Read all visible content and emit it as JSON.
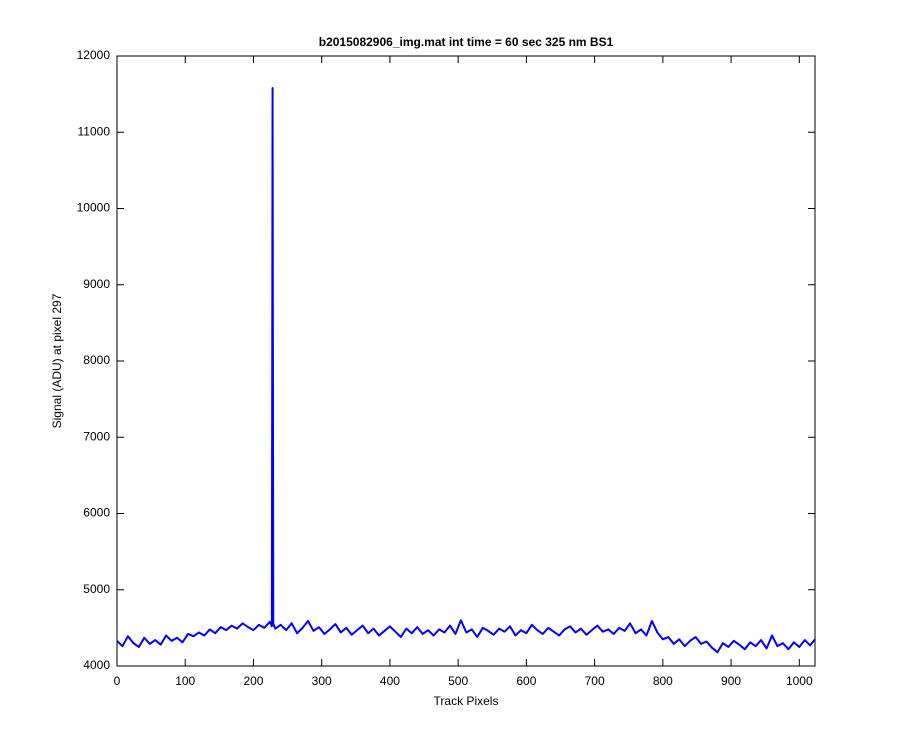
{
  "chart_data": {
    "type": "line",
    "title": "b2015082906_img.mat int time = 60 sec  325 nm BS1",
    "x_label": "Track Pixels",
    "y_label": "Signal (ADU) at pixel 297",
    "x": [
      0,
      8,
      16,
      24,
      32,
      40,
      48,
      56,
      64,
      72,
      80,
      88,
      96,
      104,
      112,
      120,
      128,
      136,
      144,
      152,
      160,
      168,
      176,
      184,
      192,
      200,
      208,
      216,
      224,
      227,
      228,
      229,
      232,
      240,
      248,
      256,
      264,
      272,
      280,
      288,
      296,
      304,
      312,
      320,
      328,
      336,
      344,
      352,
      360,
      368,
      376,
      384,
      392,
      400,
      408,
      416,
      424,
      432,
      440,
      448,
      456,
      464,
      472,
      480,
      488,
      496,
      504,
      512,
      520,
      528,
      536,
      544,
      552,
      560,
      568,
      576,
      584,
      592,
      600,
      608,
      616,
      624,
      632,
      640,
      648,
      656,
      664,
      672,
      680,
      688,
      696,
      704,
      712,
      720,
      728,
      736,
      744,
      752,
      760,
      768,
      776,
      784,
      792,
      800,
      808,
      816,
      824,
      832,
      840,
      848,
      856,
      864,
      872,
      880,
      888,
      896,
      904,
      912,
      920,
      928,
      936,
      944,
      952,
      960,
      968,
      976,
      984,
      992,
      1000,
      1008,
      1016,
      1023
    ],
    "series": [
      {
        "color": "#0000ff",
        "values": [
          4330,
          4260,
          4390,
          4300,
          4250,
          4370,
          4290,
          4340,
          4280,
          4400,
          4330,
          4370,
          4310,
          4420,
          4390,
          4440,
          4400,
          4480,
          4430,
          4510,
          4470,
          4530,
          4490,
          4560,
          4510,
          4470,
          4540,
          4500,
          4580,
          4520,
          11580,
          4560,
          4490,
          4540,
          4470,
          4560,
          4430,
          4500,
          4590,
          4460,
          4510,
          4420,
          4480,
          4550,
          4440,
          4500,
          4410,
          4470,
          4530,
          4430,
          4490,
          4400,
          4460,
          4520,
          4450,
          4380,
          4490,
          4430,
          4510,
          4420,
          4470,
          4400,
          4480,
          4440,
          4530,
          4420,
          4600,
          4440,
          4480,
          4380,
          4500,
          4460,
          4410,
          4490,
          4450,
          4520,
          4400,
          4470,
          4430,
          4540,
          4470,
          4420,
          4500,
          4450,
          4400,
          4480,
          4520,
          4440,
          4490,
          4410,
          4470,
          4530,
          4450,
          4480,
          4420,
          4500,
          4460,
          4560,
          4430,
          4480,
          4400,
          4590,
          4440,
          4350,
          4380,
          4290,
          4350,
          4260,
          4330,
          4380,
          4290,
          4320,
          4240,
          4180,
          4300,
          4250,
          4330,
          4280,
          4220,
          4310,
          4260,
          4340,
          4230,
          4400,
          4260,
          4300,
          4220,
          4310,
          4250,
          4340,
          4270,
          4350
        ]
      }
    ],
    "xlim": [
      0,
      1023
    ],
    "ylim": [
      4000,
      12000
    ],
    "xticks": [
      0,
      100,
      200,
      300,
      400,
      500,
      600,
      700,
      800,
      900,
      1000
    ],
    "yticks": [
      4000,
      5000,
      6000,
      7000,
      8000,
      9000,
      10000,
      11000,
      12000
    ]
  }
}
